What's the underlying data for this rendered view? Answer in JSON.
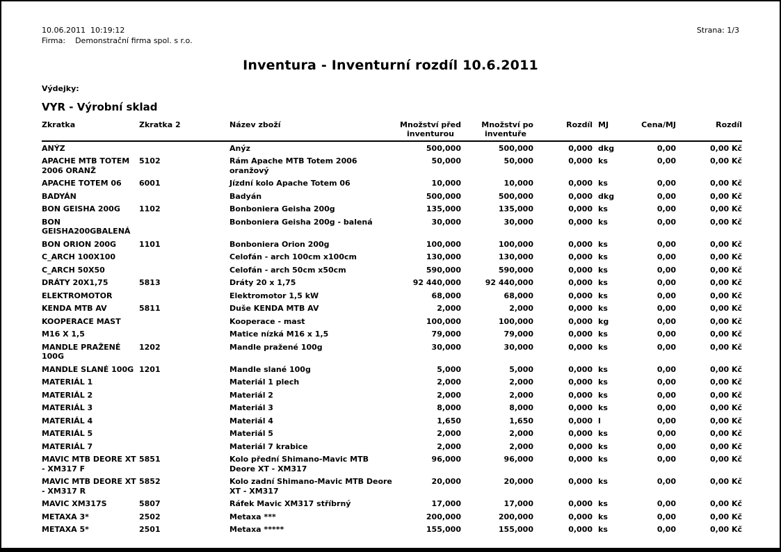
{
  "header": {
    "datetime": "10.06.2011  10:19:12",
    "firm_label": "Firma:",
    "firm_value": "Demonstrační firma spol. s r.o.",
    "page": "Strana: 1/3"
  },
  "title": "Inventura - Inventurní rozdíl 10.6.2011",
  "section_label": "Výdejky:",
  "warehouse_heading": "VYR - Výrobní sklad",
  "colors": {
    "text": "#000000",
    "background": "#ffffff",
    "border": "#000000"
  },
  "table": {
    "columns": [
      {
        "key": "zkratka",
        "label": "Zkratka",
        "label2": "",
        "align": "left"
      },
      {
        "key": "zkratka-2",
        "label": "Zkratka 2",
        "label2": "",
        "align": "left"
      },
      {
        "key": "nazev-zbozi",
        "label": "Název zboží",
        "label2": "",
        "align": "left"
      },
      {
        "key": "mnozstvi-pred",
        "label": "Množství před",
        "label2": "inventurou",
        "align": "right"
      },
      {
        "key": "mnozstvi-po",
        "label": "Množství po",
        "label2": "inventuře",
        "align": "right"
      },
      {
        "key": "rozdil",
        "label": "Rozdíl",
        "label2": "",
        "align": "right"
      },
      {
        "key": "mj",
        "label": "MJ",
        "label2": "",
        "align": "left"
      },
      {
        "key": "cena-mj",
        "label": "Cena/MJ",
        "label2": "",
        "align": "right"
      },
      {
        "key": "rozdil-kc",
        "label": "Rozdíl",
        "label2": "",
        "align": "right"
      }
    ],
    "rows": [
      [
        "ANÝZ",
        "",
        "Anýz",
        "500,000",
        "500,000",
        "0,000",
        "dkg",
        "0,00",
        "0,00 Kč"
      ],
      [
        "APACHE MTB TOTEM 2006 ORANŽ",
        "5102",
        "Rám Apache MTB Totem 2006 oranžový",
        "50,000",
        "50,000",
        "0,000",
        "ks",
        "0,00",
        "0,00 Kč"
      ],
      [
        "APACHE TOTEM 06",
        "6001",
        "Jízdní kolo Apache Totem 06",
        "10,000",
        "10,000",
        "0,000",
        "ks",
        "0,00",
        "0,00 Kč"
      ],
      [
        "BADYÁN",
        "",
        "Badyán",
        "500,000",
        "500,000",
        "0,000",
        "dkg",
        "0,00",
        "0,00 Kč"
      ],
      [
        "BON GEISHA 200G",
        "1102",
        "Bonboniera Geisha 200g",
        "135,000",
        "135,000",
        "0,000",
        "ks",
        "0,00",
        "0,00 Kč"
      ],
      [
        "BON GEISHA200GBALENÁ",
        "",
        "Bonboniera Geisha 200g - balená",
        "30,000",
        "30,000",
        "0,000",
        "ks",
        "0,00",
        "0,00 Kč"
      ],
      [
        "BON ORION 200G",
        "1101",
        "Bonboniera Orion 200g",
        "100,000",
        "100,000",
        "0,000",
        "ks",
        "0,00",
        "0,00 Kč"
      ],
      [
        "C_ARCH 100X100",
        "",
        "Celofán - arch 100cm x100cm",
        "130,000",
        "130,000",
        "0,000",
        "ks",
        "0,00",
        "0,00 Kč"
      ],
      [
        "C_ARCH 50X50",
        "",
        "Celofán - arch 50cm x50cm",
        "590,000",
        "590,000",
        "0,000",
        "ks",
        "0,00",
        "0,00 Kč"
      ],
      [
        "DRÁTY 20X1,75",
        "5813",
        "Dráty 20 x 1,75",
        "92 440,000",
        "92 440,000",
        "0,000",
        "ks",
        "0,00",
        "0,00 Kč"
      ],
      [
        "ELEKTROMOTOR",
        "",
        "Elektromotor 1,5 kW",
        "68,000",
        "68,000",
        "0,000",
        "ks",
        "0,00",
        "0,00 Kč"
      ],
      [
        "KENDA MTB AV",
        "5811",
        "Duše KENDA MTB AV",
        "2,000",
        "2,000",
        "0,000",
        "ks",
        "0,00",
        "0,00 Kč"
      ],
      [
        "KOOPERACE MAST",
        "",
        "Kooperace - mast",
        "100,000",
        "100,000",
        "0,000",
        "kg",
        "0,00",
        "0,00 Kč"
      ],
      [
        "M16 X 1,5",
        "",
        "Matice nízká M16 x 1,5",
        "79,000",
        "79,000",
        "0,000",
        "ks",
        "0,00",
        "0,00 Kč"
      ],
      [
        "MANDLE PRAŽENÉ 100G",
        "1202",
        "Mandle pražené 100g",
        "30,000",
        "30,000",
        "0,000",
        "ks",
        "0,00",
        "0,00 Kč"
      ],
      [
        "MANDLE SLANÉ  100G",
        "1201",
        "Mandle slané 100g",
        "5,000",
        "5,000",
        "0,000",
        "ks",
        "0,00",
        "0,00 Kč"
      ],
      [
        "MATERIÁL 1",
        "",
        "Materiál 1 plech",
        "2,000",
        "2,000",
        "0,000",
        "ks",
        "0,00",
        "0,00 Kč"
      ],
      [
        "MATERIÁL 2",
        "",
        "Materiál 2",
        "2,000",
        "2,000",
        "0,000",
        "ks",
        "0,00",
        "0,00 Kč"
      ],
      [
        "MATERIÁL 3",
        "",
        "Materiál 3",
        "8,000",
        "8,000",
        "0,000",
        "ks",
        "0,00",
        "0,00 Kč"
      ],
      [
        "MATERIÁL 4",
        "",
        "Materiál 4",
        "1,650",
        "1,650",
        "0,000",
        "l",
        "0,00",
        "0,00 Kč"
      ],
      [
        "MATERIÁL 5",
        "",
        "Materiál 5",
        "2,000",
        "2,000",
        "0,000",
        "ks",
        "0,00",
        "0,00 Kč"
      ],
      [
        "MATERIÁL 7",
        "",
        "Materiál 7 krabice",
        "2,000",
        "2,000",
        "0,000",
        "ks",
        "0,00",
        "0,00 Kč"
      ],
      [
        "MAVIC MTB DEORE XT - XM317 F",
        "5851",
        "Kolo přední Shimano-Mavic MTB Deore XT - XM317",
        "96,000",
        "96,000",
        "0,000",
        "ks",
        "0,00",
        "0,00 Kč"
      ],
      [
        "MAVIC MTB DEORE XT - XM317 R",
        "5852",
        "Kolo zadní Shimano-Mavic MTB Deore XT - XM317",
        "20,000",
        "20,000",
        "0,000",
        "ks",
        "0,00",
        "0,00 Kč"
      ],
      [
        "MAVIC XM317S",
        "5807",
        "Ráfek Mavic XM317 stříbrný",
        "17,000",
        "17,000",
        "0,000",
        "ks",
        "0,00",
        "0,00 Kč"
      ],
      [
        "METAXA 3*",
        "2502",
        "Metaxa ***",
        "200,000",
        "200,000",
        "0,000",
        "ks",
        "0,00",
        "0,00 Kč"
      ],
      [
        "METAXA 5*",
        "2501",
        "Metaxa *****",
        "155,000",
        "155,000",
        "0,000",
        "ks",
        "0,00",
        "0,00 Kč"
      ]
    ]
  }
}
